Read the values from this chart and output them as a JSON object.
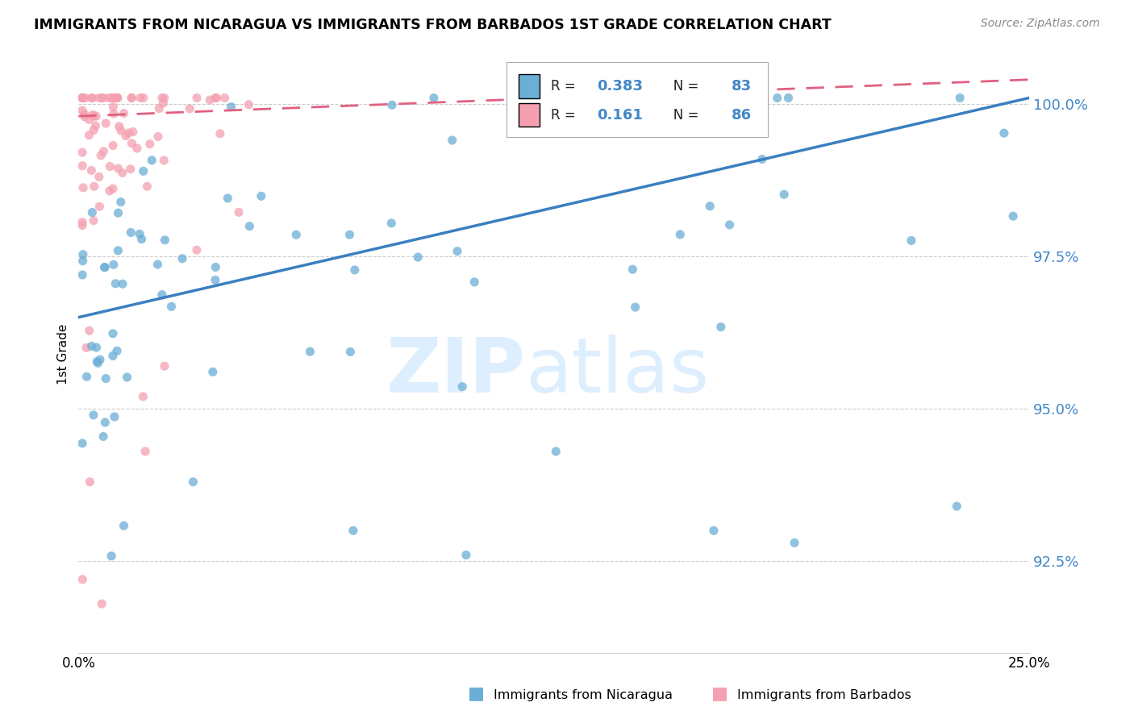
{
  "title": "IMMIGRANTS FROM NICARAGUA VS IMMIGRANTS FROM BARBADOS 1ST GRADE CORRELATION CHART",
  "source": "Source: ZipAtlas.com",
  "ylabel": "1st Grade",
  "ytick_values": [
    0.925,
    0.95,
    0.975,
    1.0
  ],
  "xmin": 0.0,
  "xmax": 0.25,
  "ymin": 0.91,
  "ymax": 1.008,
  "color_nicaragua": "#6baed6",
  "color_barbados": "#f4a0b0",
  "color_trendline_nic": "#3a7fc1",
  "color_trendline_bar": "#e06080",
  "color_right_axis": "#4287c8",
  "color_grid": "#cccccc",
  "watermark_text": "ZIPatlas",
  "watermark_color": "#ddeeff",
  "nic_trend_x0": 0.0,
  "nic_trend_y0": 0.965,
  "nic_trend_x1": 0.25,
  "nic_trend_y1": 1.001,
  "bar_trend_x0": 0.0,
  "bar_trend_y0": 0.998,
  "bar_trend_x1": 0.25,
  "bar_trend_y1": 1.004,
  "legend_r1_val": "0.383",
  "legend_n1_val": "83",
  "legend_r2_val": "0.161",
  "legend_n2_val": "86"
}
